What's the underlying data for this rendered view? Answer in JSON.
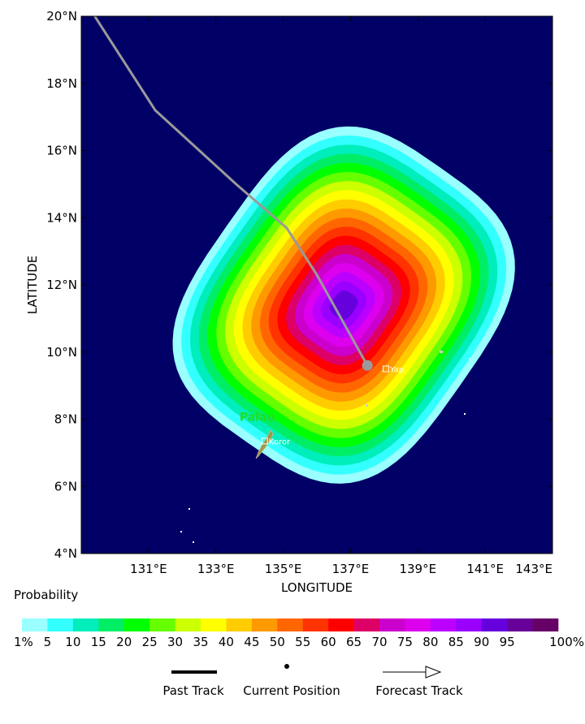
{
  "map": {
    "lon_range": [
      129,
      143
    ],
    "lat_range": [
      4,
      20
    ],
    "lon_ticks": [
      131,
      133,
      135,
      137,
      139,
      141,
      143
    ],
    "lat_ticks": [
      4,
      6,
      8,
      10,
      12,
      14,
      16,
      18,
      20
    ],
    "lon_tick_labels": [
      "131°E",
      "133°E",
      "135°E",
      "137°E",
      "139°E",
      "141°E",
      "143°E"
    ],
    "lat_tick_labels": [
      "4°N",
      "6°N",
      "8°N",
      "10°N",
      "12°N",
      "14°N",
      "16°N",
      "18°N",
      "20°N"
    ],
    "xlabel": "LONGITUDE",
    "ylabel": "LATITUDE",
    "ocean_color": "#000066",
    "past_track": [
      [
        129.4,
        20.0
      ],
      [
        131.2,
        17.2
      ],
      [
        133.6,
        15.0
      ],
      [
        135.1,
        13.7
      ],
      [
        136.0,
        12.3
      ],
      [
        137.5,
        9.6
      ]
    ],
    "current_position": {
      "lon": 137.5,
      "lat": 9.6
    },
    "probability_field": {
      "center_lon": 136.8,
      "center_lat": 11.4,
      "outer_reach_lon": 4.2,
      "outer_reach_lat": 5.0,
      "rotation_deg": 35,
      "max_probability": 90
    },
    "places": [
      {
        "name": "Yap",
        "lon": 138.05,
        "lat": 9.5
      },
      {
        "name": "Koror",
        "lon": 134.45,
        "lat": 7.35
      }
    ],
    "regions": [
      {
        "name": "Palau",
        "lon": 133.7,
        "lat": 7.95
      }
    ]
  },
  "legend": {
    "title": "Probability",
    "bins": [
      "1%",
      "5",
      "10",
      "15",
      "20",
      "25",
      "30",
      "35",
      "40",
      "45",
      "50",
      "55",
      "60",
      "65",
      "70",
      "75",
      "80",
      "85",
      "90",
      "95",
      "100%"
    ],
    "colors": [
      "#99ffff",
      "#33ffff",
      "#00eebb",
      "#00ee66",
      "#00ff00",
      "#66ff00",
      "#ccff00",
      "#ffff00",
      "#ffcc00",
      "#ff9900",
      "#ff6600",
      "#ff3300",
      "#ff0000",
      "#dd0066",
      "#cc00cc",
      "#dd00ee",
      "#bb00ff",
      "#9900ff",
      "#6600dd",
      "#660099",
      "#660066"
    ],
    "past_track_label": "Past Track",
    "current_position_label": "Current Position",
    "forecast_track_label": "Forecast Track"
  }
}
